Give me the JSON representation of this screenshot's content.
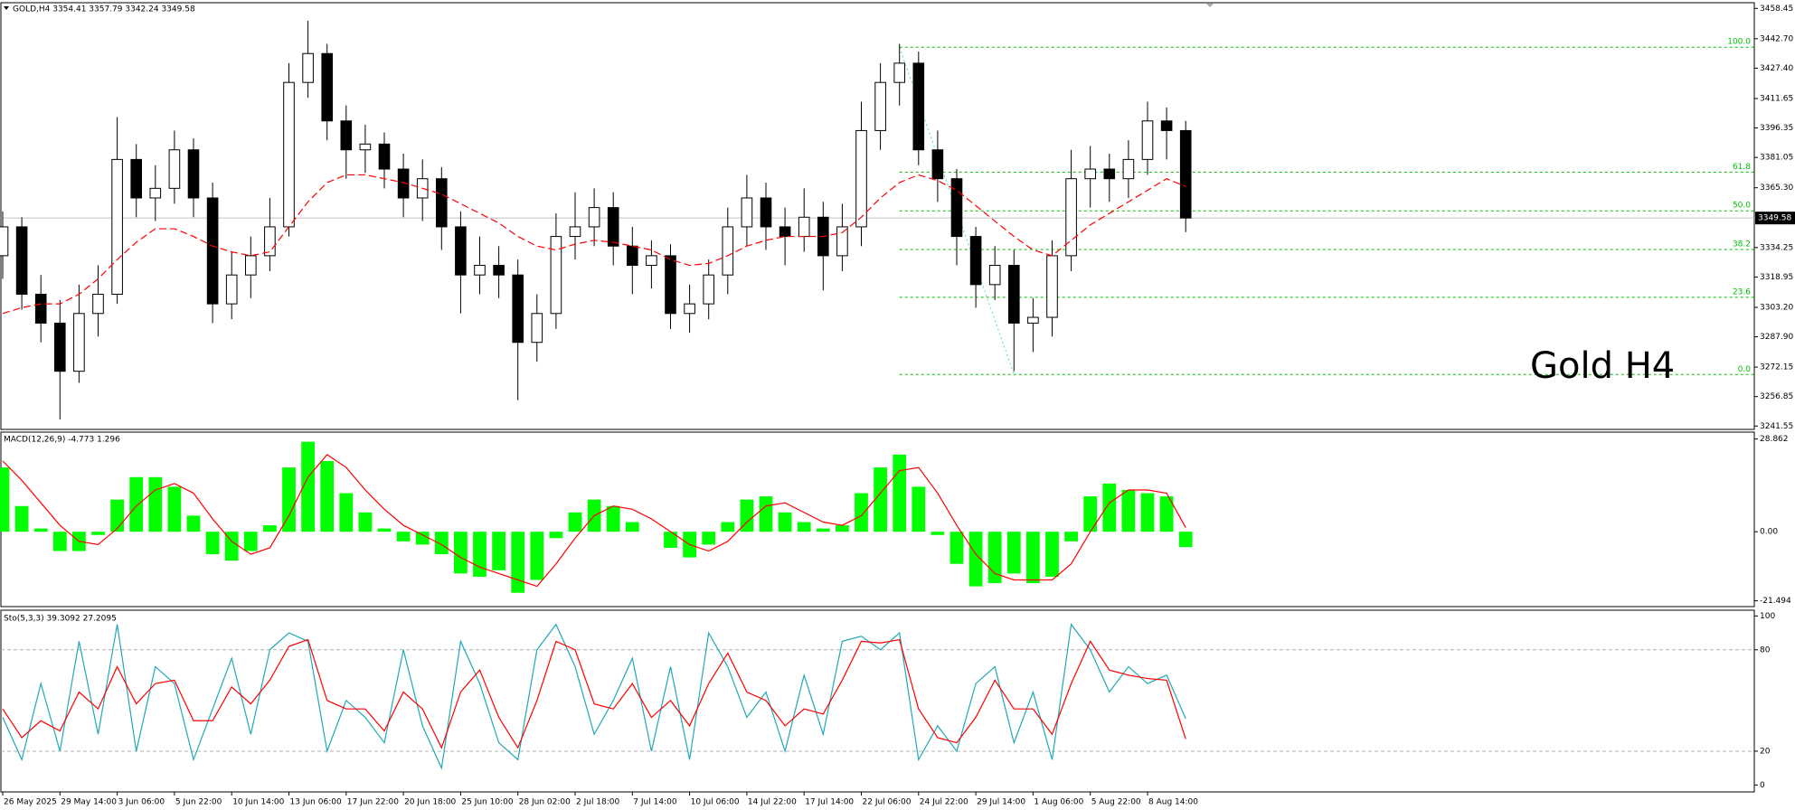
{
  "chart_data": [
    {
      "type": "candlestick",
      "title": "GOLD,H4  3354.41 3357.79 3342.24 3349.58",
      "open": [
        3330,
        3345,
        3310,
        3295,
        3270,
        3300,
        3310,
        3380,
        3360,
        3365,
        3385,
        3360,
        3305,
        3320,
        3330,
        3345,
        3420,
        3435,
        3400,
        3385,
        3388,
        3375,
        3360,
        3370,
        3345,
        3320,
        3325,
        3320,
        3285,
        3300,
        3340,
        3345,
        3355,
        3335,
        3325,
        3330,
        3300,
        3305,
        3320,
        3345,
        3360,
        3345,
        3340,
        3350,
        3330,
        3345,
        3395,
        3420,
        3430,
        3385,
        3370,
        3340,
        3315,
        3325,
        3295,
        3298,
        3330,
        3370,
        3375,
        3370,
        3380,
        3400,
        3395
      ],
      "high": [
        3353,
        3350,
        3320,
        3307,
        3315,
        3325,
        3402,
        3388,
        3377,
        3395,
        3391,
        3368,
        3332,
        3340,
        3360,
        3430,
        3452,
        3440,
        3408,
        3398,
        3394,
        3383,
        3380,
        3376,
        3353,
        3340,
        3335,
        3328,
        3310,
        3352,
        3363,
        3365,
        3363,
        3345,
        3338,
        3336,
        3315,
        3328,
        3355,
        3372,
        3368,
        3355,
        3365,
        3358,
        3357,
        3410,
        3430,
        3440,
        3436,
        3395,
        3375,
        3345,
        3335,
        3333,
        3308,
        3338,
        3385,
        3387,
        3383,
        3390,
        3410,
        3407,
        3400
      ],
      "low": [
        3318,
        3302,
        3285,
        3245,
        3264,
        3288,
        3305,
        3350,
        3348,
        3357,
        3350,
        3295,
        3297,
        3308,
        3322,
        3340,
        3412,
        3390,
        3370,
        3373,
        3365,
        3350,
        3348,
        3333,
        3300,
        3310,
        3308,
        3255,
        3275,
        3292,
        3328,
        3335,
        3325,
        3310,
        3313,
        3292,
        3290,
        3297,
        3310,
        3335,
        3333,
        3325,
        3332,
        3312,
        3322,
        3335,
        3385,
        3408,
        3377,
        3358,
        3325,
        3303,
        3307,
        3270,
        3280,
        3288,
        3322,
        3355,
        3358,
        3360,
        3372,
        3380,
        3342.24
      ],
      "close": [
        3345,
        3310,
        3295,
        3270,
        3300,
        3310,
        3380,
        3360,
        3365,
        3385,
        3360,
        3305,
        3320,
        3330,
        3345,
        3420,
        3435,
        3400,
        3385,
        3388,
        3375,
        3360,
        3370,
        3345,
        3320,
        3325,
        3320,
        3285,
        3300,
        3340,
        3345,
        3355,
        3335,
        3325,
        3330,
        3300,
        3305,
        3320,
        3345,
        3360,
        3345,
        3340,
        3350,
        3330,
        3345,
        3395,
        3420,
        3430,
        3385,
        3370,
        3340,
        3315,
        3325,
        3295,
        3298,
        3330,
        3370,
        3375,
        3370,
        3380,
        3400,
        3395,
        3349.58
      ],
      "overlay": {
        "color": "#ff0000",
        "values": [
          3300,
          3303,
          3305,
          3305,
          3310,
          3318,
          3328,
          3337,
          3344,
          3344,
          3340,
          3335,
          3332,
          3330,
          3332,
          3345,
          3358,
          3368,
          3372,
          3372,
          3370,
          3368,
          3365,
          3362,
          3357,
          3352,
          3347,
          3340,
          3335,
          3333,
          3336,
          3338,
          3337,
          3335,
          3333,
          3328,
          3325,
          3326,
          3330,
          3335,
          3338,
          3340,
          3340,
          3340,
          3342,
          3350,
          3360,
          3368,
          3372,
          3369,
          3364,
          3356,
          3348,
          3340,
          3333,
          3330,
          3338,
          3346,
          3352,
          3358,
          3364,
          3370,
          3366
        ]
      },
      "ylim": [
        3239.8,
        3461.4
      ],
      "yticks": [
        3458.45,
        {
          "value": 3442.7,
          "label": "3442.70"
        },
        {
          "value": 3427.4,
          "label": "3427.40"
        },
        3411.65,
        3396.35,
        3381.05,
        {
          "value": 3365.3,
          "label": "3365.30"
        },
        3334.25,
        3318.95,
        {
          "value": 3303.2,
          "label": "3303.20"
        },
        {
          "value": 3287.9,
          "label": "3287.90"
        },
        3272.15,
        3256.85,
        3241.55
      ],
      "xticks": [
        {
          "value": 0,
          "label": "26 May 2025"
        },
        {
          "value": 3,
          "label": "29 May 14:00"
        },
        {
          "value": 6,
          "label": "3 Jun 06:00"
        },
        {
          "value": 9,
          "label": "5 Jun 22:00"
        },
        {
          "value": 12,
          "label": "10 Jun 14:00"
        },
        {
          "value": 15,
          "label": "13 Jun 06:00"
        },
        {
          "value": 18,
          "label": "17 Jun 22:00"
        },
        {
          "value": 21,
          "label": "20 Jun 18:00"
        },
        {
          "value": 24,
          "label": "25 Jun 10:00"
        },
        {
          "value": 27,
          "label": "28 Jun 02:00"
        },
        {
          "value": 30,
          "label": "2 Jul 18:00"
        },
        {
          "value": 33,
          "label": "7 Jul 14:00"
        },
        {
          "value": 36,
          "label": "10 Jul 06:00"
        },
        {
          "value": 39,
          "label": "14 Jul 22:00"
        },
        {
          "value": 42,
          "label": "17 Jul 14:00"
        },
        {
          "value": 45,
          "label": "22 Jul 06:00"
        },
        {
          "value": 48,
          "label": "24 Jul 22:00"
        },
        {
          "value": 51,
          "label": "29 Jul 14:00"
        },
        {
          "value": 54,
          "label": "1 Aug 06:00"
        },
        {
          "value": 57,
          "label": "5 Aug 22:00"
        },
        {
          "value": 60,
          "label": "8 Aug 14:00"
        }
      ],
      "last_price": 3349.58,
      "fib_levels": [
        {
          "value": 3438.3,
          "label": "100.0"
        },
        {
          "value": 3373.4,
          "label": "61.8"
        },
        {
          "value": 3353.3,
          "label": "50.0"
        },
        {
          "value": 3333.2,
          "label": "38.2"
        },
        {
          "value": 3308.4,
          "label": "23.6"
        },
        {
          "value": 3268.3,
          "label": "0.0"
        }
      ],
      "fib_color": "#00c000",
      "annotation": "Gold H4"
    },
    {
      "type": "macd",
      "title": "MACD(12,26,9) -4.773 1.296",
      "histogram": {
        "color": "#00ff00",
        "values": [
          20,
          8,
          1,
          -6,
          -6,
          -1,
          10,
          17,
          17,
          14,
          5,
          -7,
          -9,
          -6,
          2,
          20,
          28,
          22,
          12,
          6,
          1,
          -3,
          -4,
          -7,
          -13,
          -14,
          -12,
          -19,
          -15,
          -2,
          6,
          10,
          8,
          3,
          0,
          -5,
          -8,
          -4,
          3,
          10,
          11,
          6,
          3,
          1,
          2,
          12,
          20,
          24,
          14,
          -1,
          -10,
          -17,
          -16,
          -13,
          -16,
          -14,
          -3,
          11,
          15,
          13,
          12,
          11,
          -4.773
        ]
      },
      "signal": {
        "color": "#ff0000",
        "values": [
          22,
          16,
          9,
          2,
          -3,
          -4,
          1,
          8,
          13,
          15,
          12,
          4,
          -3,
          -7,
          -5,
          5,
          17,
          24,
          20,
          13,
          7,
          2,
          -1,
          -4,
          -8,
          -11,
          -13,
          -15,
          -17,
          -10,
          -2,
          5,
          8,
          7,
          4,
          0,
          -4,
          -6,
          -3,
          3,
          8,
          9,
          6,
          3,
          2,
          5,
          12,
          19,
          20,
          12,
          2,
          -7,
          -13,
          -15,
          -15,
          -15,
          -10,
          0,
          9,
          13,
          13,
          12,
          1.296
        ]
      },
      "ylim": [
        -23.3,
        31.0
      ],
      "yticks": [
        28.862,
        {
          "value": 0,
          "label": "0.00"
        },
        -21.494
      ]
    },
    {
      "type": "stochastic",
      "title": "Sto(5,3,3) 39.3092 27.2095",
      "main": {
        "color": "#20a8b8",
        "values": [
          40,
          15,
          60,
          20,
          85,
          30,
          95,
          20,
          70,
          60,
          15,
          45,
          75,
          30,
          80,
          90,
          85,
          20,
          50,
          40,
          25,
          80,
          35,
          10,
          85,
          60,
          25,
          15,
          80,
          95,
          70,
          30,
          50,
          75,
          20,
          70,
          15,
          90,
          70,
          40,
          55,
          20,
          65,
          30,
          85,
          88,
          80,
          90,
          15,
          35,
          20,
          60,
          70,
          25,
          55,
          15,
          95,
          80,
          55,
          70,
          60,
          65,
          39.3092
        ]
      },
      "signal": {
        "color": "#ff0000",
        "values": [
          45,
          28,
          38,
          32,
          55,
          45,
          70,
          48,
          60,
          62,
          38,
          38,
          58,
          48,
          62,
          82,
          86,
          50,
          45,
          45,
          32,
          55,
          45,
          22,
          55,
          68,
          40,
          22,
          50,
          85,
          80,
          48,
          45,
          60,
          40,
          50,
          35,
          60,
          78,
          55,
          50,
          35,
          45,
          42,
          62,
          85,
          84,
          86,
          45,
          28,
          25,
          40,
          62,
          45,
          45,
          30,
          60,
          85,
          68,
          65,
          63,
          62,
          27.2095
        ]
      },
      "ylim": [
        -4.1,
        103.4
      ],
      "yticks": [
        100,
        80,
        20,
        0
      ],
      "levels": [
        80,
        20
      ]
    }
  ]
}
